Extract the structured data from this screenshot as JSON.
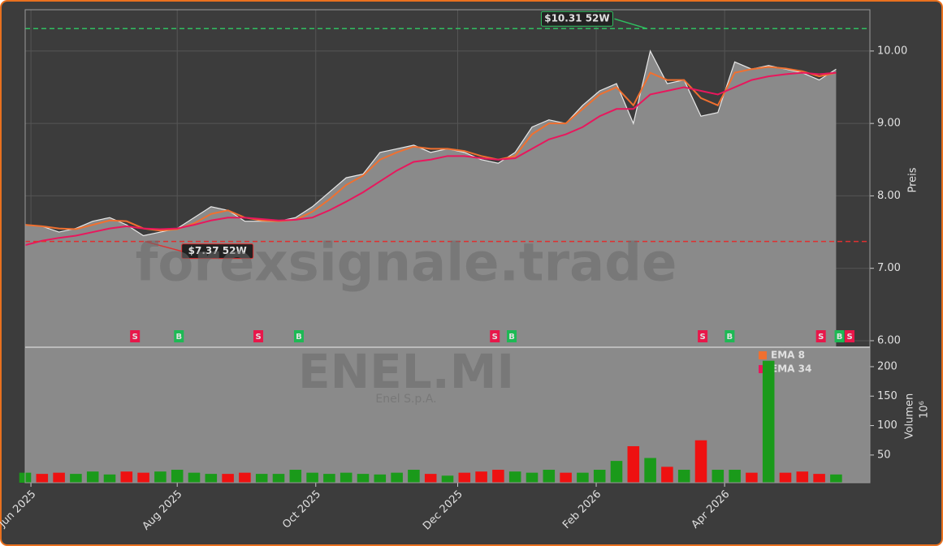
{
  "chart_data": [
    {
      "type": "line",
      "watermark": "forexsignale.trade",
      "y_label": "Preis",
      "x": [
        0,
        1,
        2,
        3,
        4,
        5,
        6,
        7,
        8,
        9,
        10,
        11,
        12,
        13,
        14,
        15,
        16,
        17,
        18,
        19,
        20,
        21,
        22,
        23,
        24,
        25,
        26,
        27,
        28,
        29,
        30,
        31,
        32,
        33,
        34,
        35,
        36,
        37,
        38,
        39,
        40,
        41,
        42,
        43,
        44,
        45,
        46,
        47,
        48
      ],
      "values": [
        7.6,
        7.58,
        7.5,
        7.55,
        7.65,
        7.7,
        7.6,
        7.45,
        7.5,
        7.55,
        7.7,
        7.85,
        7.8,
        7.65,
        7.65,
        7.65,
        7.7,
        7.85,
        8.05,
        8.25,
        8.3,
        8.6,
        8.65,
        8.7,
        8.6,
        8.65,
        8.6,
        8.5,
        8.45,
        8.6,
        8.95,
        9.05,
        9.0,
        9.25,
        9.45,
        9.55,
        9.0,
        10.0,
        9.55,
        9.6,
        9.1,
        9.15,
        9.85,
        9.75,
        9.8,
        9.75,
        9.7,
        9.6,
        9.75
      ],
      "series": [
        {
          "name": "EMA 8",
          "color": "#f07030",
          "values": [
            7.6,
            7.58,
            7.55,
            7.54,
            7.6,
            7.66,
            7.65,
            7.55,
            7.52,
            7.54,
            7.62,
            7.75,
            7.8,
            7.7,
            7.66,
            7.65,
            7.67,
            7.78,
            7.95,
            8.15,
            8.28,
            8.5,
            8.6,
            8.68,
            8.65,
            8.65,
            8.62,
            8.55,
            8.5,
            8.55,
            8.85,
            9.0,
            9.0,
            9.2,
            9.4,
            9.5,
            9.25,
            9.7,
            9.6,
            9.6,
            9.35,
            9.25,
            9.7,
            9.75,
            9.78,
            9.76,
            9.72,
            9.65,
            9.7
          ]
        },
        {
          "name": "EMA 34",
          "color": "#e8175d",
          "values": [
            7.32,
            7.38,
            7.42,
            7.45,
            7.5,
            7.55,
            7.58,
            7.55,
            7.54,
            7.55,
            7.6,
            7.66,
            7.7,
            7.7,
            7.68,
            7.66,
            7.67,
            7.7,
            7.8,
            7.92,
            8.05,
            8.2,
            8.35,
            8.47,
            8.5,
            8.55,
            8.55,
            8.52,
            8.5,
            8.52,
            8.65,
            8.78,
            8.85,
            8.95,
            9.1,
            9.2,
            9.2,
            9.4,
            9.45,
            9.5,
            9.45,
            9.4,
            9.5,
            9.6,
            9.65,
            9.68,
            9.7,
            9.68,
            9.7
          ]
        }
      ],
      "annotations": [
        {
          "value": 10.31,
          "x": 36.8,
          "label": "$10.31 52W",
          "color": "#2fbf60"
        },
        {
          "value": 7.37,
          "x": 7.1,
          "label": "$7.37 52W",
          "color": "#e03030"
        }
      ],
      "signals": [
        {
          "x": 6.5,
          "label": "S"
        },
        {
          "x": 9.1,
          "label": "B"
        },
        {
          "x": 13.8,
          "label": "S"
        },
        {
          "x": 16.2,
          "label": "B"
        },
        {
          "x": 27.8,
          "label": "S"
        },
        {
          "x": 28.8,
          "label": "B"
        },
        {
          "x": 40.1,
          "label": "S"
        },
        {
          "x": 41.7,
          "label": "B"
        },
        {
          "x": 47.1,
          "label": "S"
        },
        {
          "x": 48.2,
          "label": "B"
        },
        {
          "x": 48.8,
          "label": "S"
        }
      ],
      "signal_colors": {
        "S": "#e8174a",
        "B": "#1db954"
      },
      "xlim": [
        0,
        50
      ],
      "ylim": [
        5.91,
        10.57
      ],
      "yticks": [
        {
          "value": 6,
          "label": "6.00"
        },
        {
          "value": 7,
          "label": "7.00"
        },
        {
          "value": 8,
          "label": "8.00"
        },
        {
          "value": 9,
          "label": "9.00"
        },
        {
          "value": 10,
          "label": "10.00"
        }
      ],
      "grid": true,
      "color": "#8a8a8a"
    },
    {
      "type": "bar",
      "watermark": "ENEL.MI",
      "subtitle": "Enel S.p.A.",
      "y_label": "Volumen",
      "y_unit": "10⁶",
      "x": [
        0,
        1,
        2,
        3,
        4,
        5,
        6,
        7,
        8,
        9,
        10,
        11,
        12,
        13,
        14,
        15,
        16,
        17,
        18,
        19,
        20,
        21,
        22,
        23,
        24,
        25,
        26,
        27,
        28,
        29,
        30,
        31,
        32,
        33,
        34,
        35,
        36,
        37,
        38,
        39,
        40,
        41,
        42,
        43,
        44,
        45,
        46,
        47,
        48
      ],
      "values": [
        20,
        18,
        20,
        18,
        22,
        17,
        22,
        20,
        22,
        25,
        20,
        18,
        18,
        20,
        18,
        18,
        25,
        20,
        18,
        20,
        18,
        17,
        20,
        25,
        18,
        15,
        20,
        22,
        25,
        22,
        20,
        25,
        20,
        20,
        25,
        40,
        65,
        45,
        30,
        25,
        75,
        25,
        25,
        20,
        210,
        20,
        22,
        18,
        17
      ],
      "colors": {
        "up": "#1a9a1a",
        "down": "#ee1111"
      },
      "xlim": [
        0,
        50
      ],
      "ylim": [
        3,
        233
      ],
      "yticks": [
        50,
        100,
        150,
        200
      ],
      "xticks": [
        {
          "value": 0.34,
          "label": "Jun 2025"
        },
        {
          "value": 9.0,
          "label": "Aug 2025"
        },
        {
          "value": 17.2,
          "label": "Oct 2025"
        },
        {
          "value": 25.6,
          "label": "Dec 2025"
        },
        {
          "value": 33.8,
          "label": "Feb 2026"
        },
        {
          "value": 41.4,
          "label": "Apr 2026"
        }
      ]
    }
  ]
}
